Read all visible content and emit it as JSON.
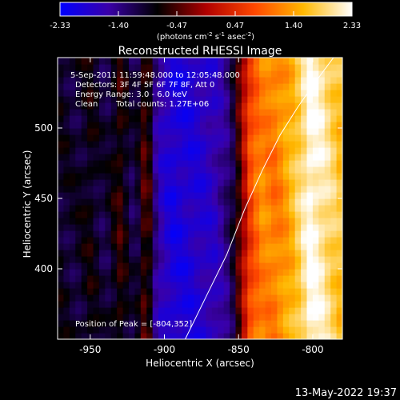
{
  "chart_data": {
    "type": "heatmap",
    "title": "Reconstructed RHESSI Image",
    "colorbar": {
      "ticks": [
        "-2.33",
        "-1.40",
        "-0.47",
        "0.47",
        "1.40",
        "2.33"
      ],
      "range": [
        -2.33,
        2.33
      ],
      "units_parts": [
        "(photons cm",
        "-2",
        " s",
        "-1",
        " asec",
        "-2",
        ")"
      ],
      "colors": [
        "#0000ff",
        "#3a00a8",
        "#000000",
        "#b00000",
        "#ff4800",
        "#ffb800",
        "#ffffff"
      ]
    },
    "annotations": [
      "5-Sep-2011 11:59:48.000 to 12:05:48.000",
      "Detectors: 3F 4F 5F 6F 7F 8F, Att 0",
      "Energy Range: 3.0 - 6.0 keV",
      "Clean",
      "Total counts: 1.27E+06"
    ],
    "peak_label": "Position of Peak = [-804,352]",
    "xlabel": "Heliocentric X (arcsec)",
    "ylabel": "Heliocentric Y (arcsec)",
    "xlim": [
      -972,
      -780
    ],
    "ylim": [
      350,
      550
    ],
    "xticks": [
      -950,
      -900,
      -850,
      -800
    ],
    "yticks": [
      400,
      450,
      500
    ],
    "xtick_labels": [
      "-950",
      "-900",
      "-850",
      "-800"
    ],
    "ytick_labels": [
      "400",
      "450",
      "500"
    ],
    "column_profile": {
      "x": [
        -972,
        -960,
        -950,
        -940,
        -930,
        -920,
        -912,
        -905,
        -895,
        -880,
        -865,
        -855,
        -848,
        -842,
        -835,
        -825,
        -815,
        -808,
        -802,
        -796,
        -788,
        -780
      ],
      "value": [
        -0.9,
        -1.0,
        -0.8,
        -1.1,
        -0.6,
        -1.2,
        -0.3,
        -1.6,
        -2.0,
        -1.9,
        -1.7,
        -1.2,
        -0.2,
        0.7,
        1.2,
        1.1,
        1.5,
        1.9,
        2.3,
        2.2,
        1.9,
        1.6
      ]
    },
    "limb_curve": {
      "x": [
        -886,
        -872,
        -858,
        -846,
        -834,
        -822,
        -810,
        -798,
        -786
      ],
      "y": [
        350,
        380,
        410,
        442,
        470,
        495,
        515,
        533,
        550
      ]
    }
  },
  "timestamp": "13-May-2022 19:37"
}
